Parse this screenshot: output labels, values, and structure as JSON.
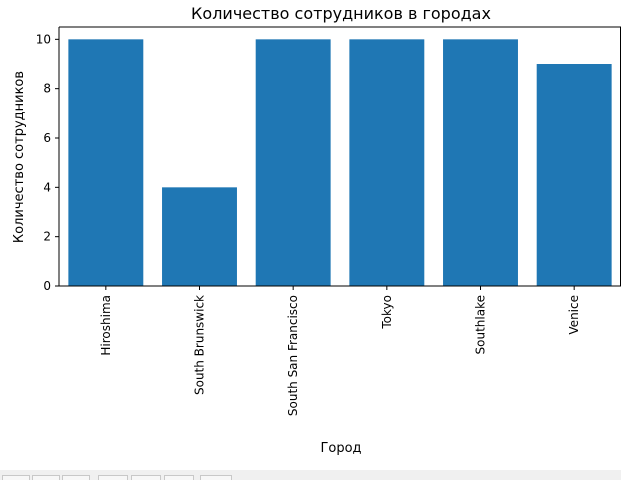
{
  "chart_data": {
    "type": "bar",
    "title": "Количество сотрудников в городах",
    "xlabel": "Город",
    "ylabel": "Количество сотрудников",
    "categories": [
      "Hiroshima",
      "South Brunswick",
      "South San Francisco",
      "Tokyo",
      "Southlake",
      "Venice"
    ],
    "values": [
      10,
      4,
      10,
      10,
      10,
      9
    ],
    "ylim": [
      0,
      10.5
    ],
    "yticks": [
      0,
      2,
      4,
      6,
      8,
      10
    ],
    "bar_color": "#1f77b4",
    "grid": false,
    "legend": "none"
  }
}
